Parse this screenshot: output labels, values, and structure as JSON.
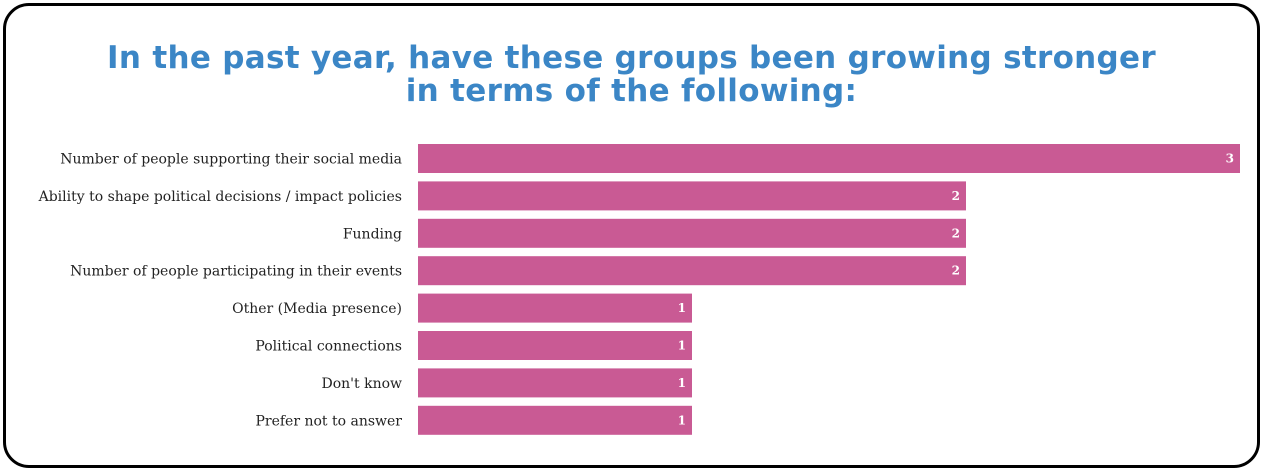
{
  "colors": {
    "title": "#3b86c6",
    "bar": "#c95a94",
    "border": "#000000"
  },
  "chart_data": {
    "type": "bar",
    "orientation": "horizontal",
    "title": "In the past year, have these groups been growing stronger\nin terms of the following:",
    "categories": [
      "Number of people supporting their social media",
      "Ability to shape political decisions / impact policies",
      "Funding",
      "Number of people participating in their events",
      "Other (Media presence)",
      "Political connections",
      "Don't know",
      "Prefer not to answer"
    ],
    "values": [
      3,
      2,
      2,
      2,
      1,
      1,
      1,
      1
    ],
    "xlim": [
      0,
      3
    ],
    "data_labels": true,
    "grid": false,
    "legend": "none"
  }
}
